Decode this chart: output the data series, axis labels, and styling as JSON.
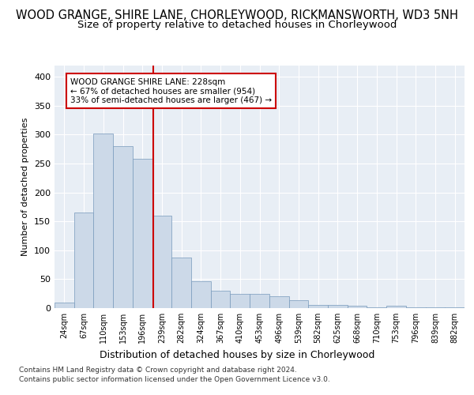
{
  "title": "WOOD GRANGE, SHIRE LANE, CHORLEYWOOD, RICKMANSWORTH, WD3 5NH",
  "subtitle": "Size of property relative to detached houses in Chorleywood",
  "xlabel": "Distribution of detached houses by size in Chorleywood",
  "ylabel": "Number of detached properties",
  "bar_color": "#ccd9e8",
  "bar_edgecolor": "#7799bb",
  "categories": [
    "24sqm",
    "67sqm",
    "110sqm",
    "153sqm",
    "196sqm",
    "239sqm",
    "282sqm",
    "324sqm",
    "367sqm",
    "410sqm",
    "453sqm",
    "496sqm",
    "539sqm",
    "582sqm",
    "625sqm",
    "668sqm",
    "710sqm",
    "753sqm",
    "796sqm",
    "839sqm",
    "882sqm"
  ],
  "values": [
    10,
    165,
    302,
    280,
    258,
    160,
    88,
    47,
    30,
    25,
    25,
    20,
    14,
    6,
    5,
    4,
    2,
    4,
    2,
    1,
    1
  ],
  "ylim": [
    0,
    420
  ],
  "yticks": [
    0,
    50,
    100,
    150,
    200,
    250,
    300,
    350,
    400
  ],
  "property_line_x": 4.55,
  "annotation_line1": "WOOD GRANGE SHIRE LANE: 228sqm",
  "annotation_line2": "← 67% of detached houses are smaller (954)",
  "annotation_line3": "33% of semi-detached houses are larger (467) →",
  "annotation_box_color": "#ffffff",
  "annotation_box_edgecolor": "#cc0000",
  "footer_line1": "Contains HM Land Registry data © Crown copyright and database right 2024.",
  "footer_line2": "Contains public sector information licensed under the Open Government Licence v3.0.",
  "plot_background": "#e8eef5",
  "grid_color": "#ffffff",
  "vline_color": "#cc0000",
  "title_fontsize": 10.5,
  "subtitle_fontsize": 9.5,
  "xlabel_fontsize": 9,
  "ylabel_fontsize": 8
}
